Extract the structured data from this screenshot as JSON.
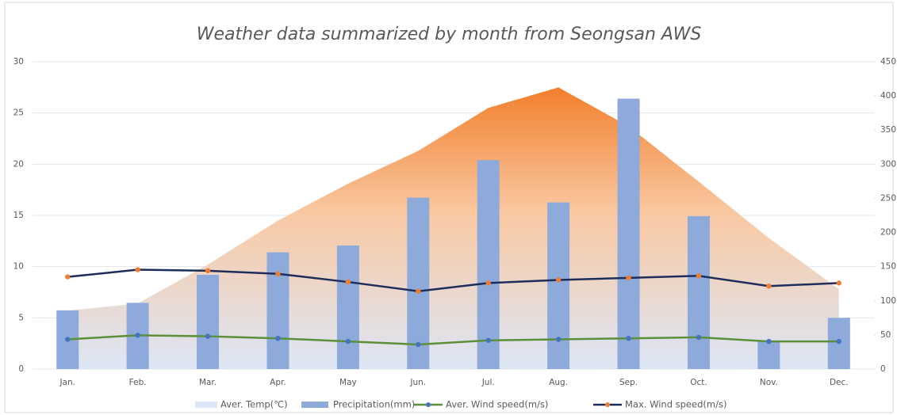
{
  "chart_data": {
    "type": "combo",
    "title": "Weather data summarized by month from Seongsan AWS",
    "categories": [
      "Jan.",
      "Feb.",
      "Mar.",
      "Apr.",
      "May",
      "Jun.",
      "Jul.",
      "Aug.",
      "Sep.",
      "Oct.",
      "Nov.",
      "Dec."
    ],
    "ylim": [
      0,
      30
    ],
    "yticks": [
      0,
      5,
      10,
      15,
      20,
      25,
      30
    ],
    "y2lim": [
      0,
      450
    ],
    "y2ticks": [
      0,
      50,
      100,
      150,
      200,
      250,
      300,
      350,
      400,
      450
    ],
    "grid": true,
    "legend": "bottom",
    "series": [
      {
        "name": "Aver. Temp(℃)",
        "type": "area",
        "color": "#f08a3c",
        "values": [
          5.7,
          6.4,
          10.2,
          14.5,
          18.1,
          21.3,
          25.5,
          27.5,
          23.7,
          18.3,
          12.8,
          7.8
        ]
      },
      {
        "name": "Precipitation(mm)",
        "type": "bar",
        "axis": "y2",
        "color": "#8eaadb",
        "values": [
          86,
          97,
          138,
          171,
          181,
          251,
          306,
          244,
          396,
          224,
          42,
          75
        ]
      },
      {
        "name": "Aver. Wind speed(m/s)",
        "type": "line",
        "color": "#5b9038",
        "marker_color": "#4472c4",
        "values": [
          2.9,
          3.3,
          3.2,
          3.0,
          2.7,
          2.4,
          2.8,
          2.9,
          3.0,
          3.1,
          2.7,
          2.7
        ]
      },
      {
        "name": "Max. Wind speed(m/s)",
        "type": "line",
        "color": "#1f2d5c",
        "marker_color": "#ed7d31",
        "values": [
          9.0,
          9.7,
          9.6,
          9.3,
          8.5,
          7.6,
          8.4,
          8.7,
          8.9,
          9.1,
          8.1,
          8.4
        ]
      }
    ]
  }
}
